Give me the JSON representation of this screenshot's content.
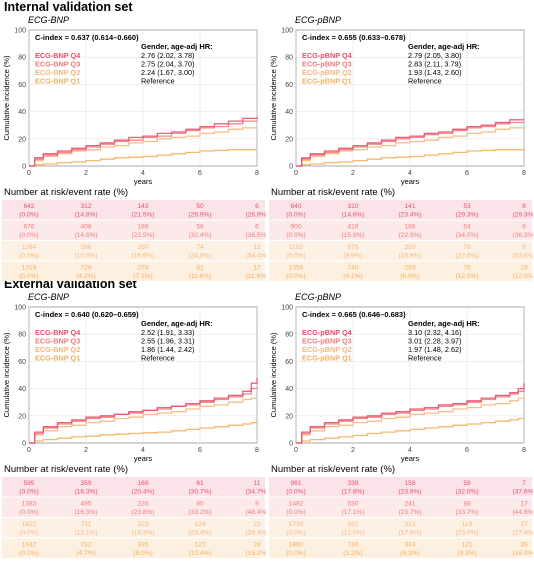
{
  "sections": [
    {
      "title": "Internal validation set"
    },
    {
      "title": "External validation set"
    }
  ],
  "colors": {
    "q4": "#e8506e",
    "q3": "#ef7d7d",
    "q2": "#f5b77c",
    "q1": "#f2b15d"
  },
  "chart_data": [
    {
      "type": "line",
      "panel_title": "ECG-BNP",
      "ylabel": "Cumulative incidence (%)",
      "xlabel": "years",
      "xlim": [
        0,
        8
      ],
      "ylim": [
        0,
        100
      ],
      "xticks": [
        "0",
        "2",
        "4",
        "6",
        "8"
      ],
      "yticks": [
        "0",
        "20",
        "40",
        "60",
        "80",
        "100"
      ],
      "cindex": "C-index = 0.637 (0.614–0.660)",
      "hr_header": "Gender, age-adj HR:",
      "series": [
        {
          "name": "ECG-BNP Q4",
          "hr": "2.76 (2.02, 3.78)",
          "x": [
            0,
            0.2,
            0.5,
            1,
            1.5,
            2,
            2.5,
            3,
            3.5,
            4,
            4.5,
            5,
            5.5,
            6,
            6.5,
            7,
            7.5,
            8
          ],
          "y": [
            0,
            6,
            9,
            11,
            13,
            15,
            17,
            19,
            21,
            22,
            24,
            25,
            27,
            29,
            31,
            33,
            35,
            36
          ]
        },
        {
          "name": "ECG-BNP Q3",
          "hr": "2.75 (2.04, 3.70)",
          "x": [
            0,
            0.2,
            0.5,
            1,
            1.5,
            2,
            2.5,
            3,
            3.5,
            4,
            4.5,
            5,
            5.5,
            6,
            6.5,
            7,
            7.5,
            8
          ],
          "y": [
            0,
            5,
            8,
            10,
            12,
            14,
            16,
            18,
            19,
            21,
            22,
            24,
            26,
            28,
            29,
            31,
            33,
            33
          ]
        },
        {
          "name": "ECG-BNP Q2",
          "hr": "2.24 (1.67, 3.00)",
          "x": [
            0,
            0.2,
            0.5,
            1,
            1.5,
            2,
            2.5,
            3,
            3.5,
            4,
            4.5,
            5,
            5.5,
            6,
            6.5,
            7,
            7.5,
            8
          ],
          "y": [
            0,
            4,
            7,
            9,
            11,
            12,
            14,
            15,
            17,
            18,
            20,
            21,
            22,
            24,
            25,
            27,
            28,
            29
          ]
        },
        {
          "name": "ECG-BNP Q1",
          "hr": "Reference",
          "x": [
            0,
            0.2,
            0.5,
            1,
            1.5,
            2,
            2.5,
            3,
            3.5,
            4,
            4.5,
            5,
            5.5,
            6,
            6.5,
            7,
            7.5,
            8
          ],
          "y": [
            0,
            1,
            1.5,
            2.5,
            3,
            4,
            5,
            6,
            6.5,
            7,
            8,
            9,
            10,
            11,
            11.5,
            12,
            12,
            12
          ]
        }
      ],
      "risk_title": "Number at risk/event rate (%)",
      "risk_table": [
        {
          "n": [
            "642",
            "312",
            "143",
            "50",
            "6"
          ],
          "r": [
            "(0.0%)",
            "(14.8%)",
            "(21.5%)",
            "(26.9%)",
            "(26.9%)"
          ]
        },
        {
          "n": [
            "676",
            "408",
            "189",
            "56",
            "6"
          ],
          "r": [
            "(0.0%)",
            "(14.6%)",
            "(22.5%)",
            "(32.4%)",
            "(36.5%)"
          ]
        },
        {
          "n": [
            "1164",
            "596",
            "250",
            "74",
            "13"
          ],
          "r": [
            "(0.0%)",
            "(10.0%)",
            "(16.9%)",
            "(24.8%)",
            "(34.4%)"
          ]
        },
        {
          "n": [
            "1319",
            "729",
            "278",
            "81",
            "17"
          ],
          "r": [
            "(0.0%)",
            "(4.2%)",
            "(7.1%)",
            "(11.6%)",
            "(11.6%)"
          ]
        }
      ]
    },
    {
      "type": "line",
      "panel_title": "ECG-pBNP",
      "ylabel": "Cumulative incidence (%)",
      "xlabel": "years",
      "xlim": [
        0,
        8
      ],
      "ylim": [
        0,
        100
      ],
      "xticks": [
        "0",
        "2",
        "4",
        "6",
        "8"
      ],
      "yticks": [
        "0",
        "20",
        "40",
        "60",
        "80",
        "100"
      ],
      "cindex": "C-index = 0.655 (0.633–0.678)",
      "hr_header": "Gender, age-adj HR:",
      "series": [
        {
          "name": "ECG-pBNP Q4",
          "hr": "2.79 (2.05, 3.80)",
          "x": [
            0,
            0.2,
            0.5,
            1,
            1.5,
            2,
            2.5,
            3,
            3.5,
            4,
            4.5,
            5,
            5.5,
            6,
            6.5,
            7,
            7.5,
            8
          ],
          "y": [
            0,
            6,
            9,
            11,
            13,
            15,
            17,
            19,
            21,
            22,
            24,
            25,
            27,
            29,
            30,
            32,
            34,
            34
          ]
        },
        {
          "name": "ECG-pBNP Q3",
          "hr": "2.83 (2.11, 3.79)",
          "x": [
            0,
            0.2,
            0.5,
            1,
            1.5,
            2,
            2.5,
            3,
            3.5,
            4,
            4.5,
            5,
            5.5,
            6,
            6.5,
            7,
            7.5,
            8
          ],
          "y": [
            0,
            5,
            8,
            10,
            12,
            14,
            16,
            18,
            20,
            21,
            23,
            24,
            26,
            28,
            29,
            31,
            32,
            32
          ]
        },
        {
          "name": "ECG-pBNP Q2",
          "hr": "1.93 (1.43, 2.60)",
          "x": [
            0,
            0.2,
            0.5,
            1,
            1.5,
            2,
            2.5,
            3,
            3.5,
            4,
            4.5,
            5,
            5.5,
            6,
            6.5,
            7,
            7.5,
            8
          ],
          "y": [
            0,
            4,
            7,
            9,
            11,
            12,
            14,
            15,
            17,
            18,
            19,
            21,
            22,
            24,
            25,
            27,
            28,
            29
          ]
        },
        {
          "name": "ECG-pBNP Q1",
          "hr": "Reference",
          "x": [
            0,
            0.2,
            0.5,
            1,
            1.5,
            2,
            2.5,
            3,
            3.5,
            4,
            4.5,
            5,
            5.5,
            6,
            6.5,
            7,
            7.5,
            8
          ],
          "y": [
            0,
            1,
            1.5,
            2.5,
            3,
            4,
            5,
            6,
            6.5,
            7,
            8,
            9,
            10,
            11,
            11.5,
            12,
            12,
            12
          ]
        }
      ],
      "risk_title": "Number at risk/event rate (%)",
      "risk_table": [
        {
          "n": [
            "640",
            "310",
            "141",
            "53",
            "8"
          ],
          "r": [
            "(0.0%)",
            "(14.6%)",
            "(23.4%)",
            "(29.3%)",
            "(29.3%)"
          ]
        },
        {
          "n": [
            "900",
            "416",
            "186",
            "54",
            "6"
          ],
          "r": [
            "(0.0%)",
            "(15.9%)",
            "(22.9%)",
            "(34.0%)",
            "(36.3%)"
          ]
        },
        {
          "n": [
            "1185",
            "575",
            "250",
            "78",
            "9"
          ],
          "r": [
            "(0.0%)",
            "(9.9%)",
            "(15.8%)",
            "(22.0%)",
            "(33.6%)"
          ]
        },
        {
          "n": [
            "1356",
            "740",
            "293",
            "76",
            "19"
          ],
          "r": [
            "(0.0%)",
            "(4.1%)",
            "(6.9%)",
            "(12.0%)",
            "(12.0%)"
          ]
        }
      ]
    },
    {
      "type": "line",
      "panel_title": "ECG-BNP",
      "ylabel": "Cumulative incidence (%)",
      "xlabel": "years",
      "xlim": [
        0,
        8
      ],
      "ylim": [
        0,
        100
      ],
      "xticks": [
        "0",
        "2",
        "4",
        "6",
        "8"
      ],
      "yticks": [
        "0",
        "20",
        "40",
        "60",
        "80",
        "100"
      ],
      "cindex": "C-index = 0.640 (0.620–0.659)",
      "hr_header": "Gender, age-adj HR:",
      "series": [
        {
          "name": "ECG-BNP Q4",
          "hr": "2.52 (1.91, 3.33)",
          "x": [
            0,
            0.2,
            0.5,
            1,
            1.5,
            2,
            2.5,
            3,
            3.5,
            4,
            4.5,
            5,
            5.5,
            6,
            6.5,
            7,
            7.5,
            7.8,
            8
          ],
          "y": [
            0,
            8,
            12,
            15,
            17,
            19,
            20,
            21,
            23,
            24,
            26,
            27,
            29,
            31,
            33,
            35,
            38,
            44,
            48
          ]
        },
        {
          "name": "ECG-BNP Q3",
          "hr": "2.55 (1.96, 3.31)",
          "x": [
            0,
            0.2,
            0.5,
            1,
            1.5,
            2,
            2.5,
            3,
            3.5,
            4,
            4.5,
            5,
            5.5,
            6,
            6.5,
            7,
            7.5,
            7.8,
            8
          ],
          "y": [
            0,
            7,
            11,
            14,
            16,
            18,
            19,
            21,
            22,
            24,
            25,
            27,
            28,
            30,
            32,
            34,
            36,
            40,
            41
          ]
        },
        {
          "name": "ECG-BNP Q2",
          "hr": "1.86 (1.44, 2.42)",
          "x": [
            0,
            0.2,
            0.5,
            1,
            1.5,
            2,
            2.5,
            3,
            3.5,
            4,
            4.5,
            5,
            5.5,
            6,
            6.5,
            7,
            7.5,
            7.8,
            8
          ],
          "y": [
            0,
            6,
            9,
            12,
            13,
            15,
            16,
            18,
            19,
            21,
            22,
            23,
            25,
            27,
            28,
            30,
            32,
            33,
            34
          ]
        },
        {
          "name": "ECG-BNP Q1",
          "hr": "Reference",
          "x": [
            0,
            0.2,
            0.5,
            1,
            1.5,
            2,
            2.5,
            3,
            3.5,
            4,
            4.5,
            5,
            5.5,
            6,
            6.5,
            7,
            7.5,
            7.8,
            8
          ],
          "y": [
            0,
            1.5,
            2.5,
            3.5,
            4.5,
            5,
            6,
            6.5,
            7,
            7.5,
            8,
            9,
            10,
            11,
            12,
            13,
            14,
            15,
            16
          ]
        }
      ],
      "risk_title": "Number at risk/event rate (%)",
      "risk_table": [
        {
          "n": [
            "595",
            "359",
            "169",
            "61",
            "11"
          ],
          "r": [
            "(0.0%)",
            "(16.3%)",
            "(20.4%)",
            "(30.7%)",
            "(34.7%)"
          ]
        },
        {
          "n": [
            "1383",
            "495",
            "226",
            "80",
            "9"
          ],
          "r": [
            "(0.0%)",
            "(16.3%)",
            "(23.8%)",
            "(33.2%)",
            "(48.4%)"
          ]
        },
        {
          "n": [
            "1822",
            "711",
            "323",
            "124",
            "23"
          ],
          "r": [
            "(0.0%)",
            "(12.1%)",
            "(19.3%)",
            "(23.4%)",
            "(29.4%)"
          ]
        },
        {
          "n": [
            "1842",
            "732",
            "335",
            "122",
            "24"
          ],
          "r": [
            "(0.0%)",
            "(4.7%)",
            "(8.0%)",
            "(10.4%)",
            "(15.2%)"
          ]
        }
      ]
    },
    {
      "type": "line",
      "panel_title": "ECG-pBNP",
      "ylabel": "Cumulative incidence (%)",
      "xlabel": "years",
      "xlim": [
        0,
        8
      ],
      "ylim": [
        0,
        100
      ],
      "xticks": [
        "0",
        "2",
        "4",
        "6",
        "8"
      ],
      "yticks": [
        "0",
        "20",
        "40",
        "60",
        "80",
        "100"
      ],
      "cindex": "C-index = 0.665 (0.646–0.683)",
      "hr_header": "Gender, age-adj HR:",
      "series": [
        {
          "name": "ECG-pBNP Q4",
          "hr": "3.10 (2.32, 4.16)",
          "x": [
            0,
            0.2,
            0.5,
            1,
            1.5,
            2,
            2.5,
            3,
            3.5,
            4,
            4.5,
            5,
            5.5,
            6,
            6.5,
            7,
            7.5,
            7.8,
            8
          ],
          "y": [
            0,
            8,
            12,
            15,
            17,
            19,
            20,
            22,
            23,
            25,
            26,
            28,
            29,
            31,
            33,
            35,
            37,
            40,
            44
          ]
        },
        {
          "name": "ECG-pBNP Q3",
          "hr": "3.01 (2.28, 3.97)",
          "x": [
            0,
            0.2,
            0.5,
            1,
            1.5,
            2,
            2.5,
            3,
            3.5,
            4,
            4.5,
            5,
            5.5,
            6,
            6.5,
            7,
            7.5,
            7.8,
            8
          ],
          "y": [
            0,
            7,
            11,
            14,
            16,
            18,
            19,
            21,
            22,
            24,
            25,
            27,
            28,
            30,
            32,
            34,
            36,
            38,
            40
          ]
        },
        {
          "name": "ECG-pBNP Q2",
          "hr": "1.97 (1.48, 2.62)",
          "x": [
            0,
            0.2,
            0.5,
            1,
            1.5,
            2,
            2.5,
            3,
            3.5,
            4,
            4.5,
            5,
            5.5,
            6,
            6.5,
            7,
            7.5,
            7.8,
            8
          ],
          "y": [
            0,
            6,
            9,
            12,
            13,
            15,
            16,
            18,
            19,
            21,
            22,
            23,
            25,
            26,
            28,
            29,
            31,
            33,
            34
          ]
        },
        {
          "name": "ECG-pBNP Q1",
          "hr": "Reference",
          "x": [
            0,
            0.2,
            0.5,
            1,
            1.5,
            2,
            2.5,
            3,
            3.5,
            4,
            4.5,
            5,
            5.5,
            6,
            6.5,
            7,
            7.5,
            7.8,
            8
          ],
          "y": [
            0,
            1.5,
            2.5,
            3.5,
            4.5,
            5.5,
            7,
            8,
            9,
            10,
            11,
            12,
            13,
            14,
            15,
            16,
            17,
            18,
            18
          ]
        }
      ],
      "risk_title": "Number at risk/event rate (%)",
      "risk_table": [
        {
          "n": [
            "961",
            "339",
            "158",
            "59",
            "7"
          ],
          "r": [
            "(0.0%)",
            "(17.8%)",
            "(23.9%)",
            "(32.0%)",
            "(37.6%)"
          ]
        },
        {
          "n": [
            "1482",
            "530",
            "241",
            "88",
            "17"
          ],
          "r": [
            "(0.0%)",
            "(17.1%)",
            "(23.7%)",
            "(33.7%)",
            "(44.6%)"
          ]
        },
        {
          "n": [
            "1739",
            "682",
            "313",
            "119",
            "17"
          ],
          "r": [
            "(0.0%)",
            "(12.0%)",
            "(17.8%)",
            "(23.0%)",
            "(27.4%)"
          ]
        },
        {
          "n": [
            "1860",
            "746",
            "343",
            "121",
            "26"
          ],
          "r": [
            "(0.0%)",
            "(3.2%)",
            "(6.3%)",
            "(9.3%)",
            "(16.0%)"
          ]
        }
      ]
    }
  ]
}
